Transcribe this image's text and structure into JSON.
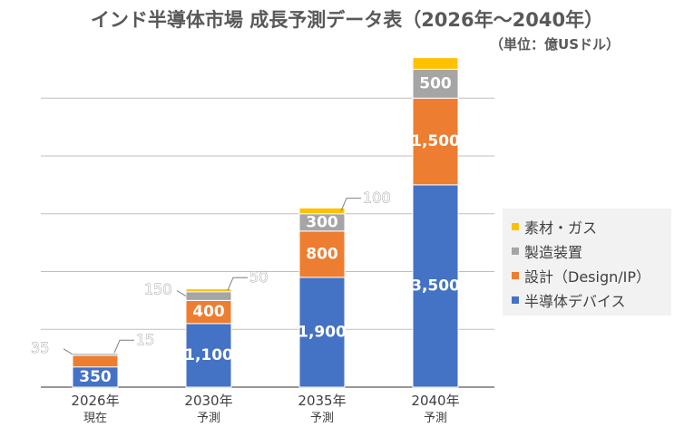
{
  "title": "インド半導体市場 成長予測データ表（2026年～2040年）",
  "subtitle": "（単位：億USドル）",
  "chart_data": {
    "type": "bar",
    "stacked": true,
    "categories": [
      "2026年",
      "2030年",
      "2035年",
      "2040年"
    ],
    "category_sublabels": [
      "現在",
      "予測",
      "予測",
      "予測"
    ],
    "series": [
      {
        "name": "半導体デバイス",
        "color": "#4472c4",
        "values": [
          350,
          1100,
          1900,
          3500
        ],
        "labels": [
          "350",
          "1,100",
          "1,900",
          "3,500"
        ]
      },
      {
        "name": "設計（Design/IP）",
        "color": "#ed7d31",
        "values": [
          200,
          400,
          800,
          1500
        ],
        "labels": [
          "200",
          "400",
          "800",
          "1,500"
        ]
      },
      {
        "name": "製造装置",
        "color": "#a5a5a5",
        "values": [
          35,
          150,
          300,
          500
        ],
        "labels": [
          "35",
          "150",
          "300",
          "500"
        ]
      },
      {
        "name": "素材・ガス",
        "color": "#ffc000",
        "values": [
          15,
          50,
          100,
          200
        ],
        "labels": [
          "15",
          "50",
          "100",
          "200"
        ]
      }
    ],
    "ylim": [
      0,
      5600
    ],
    "grid": true,
    "legend_position": "right"
  }
}
